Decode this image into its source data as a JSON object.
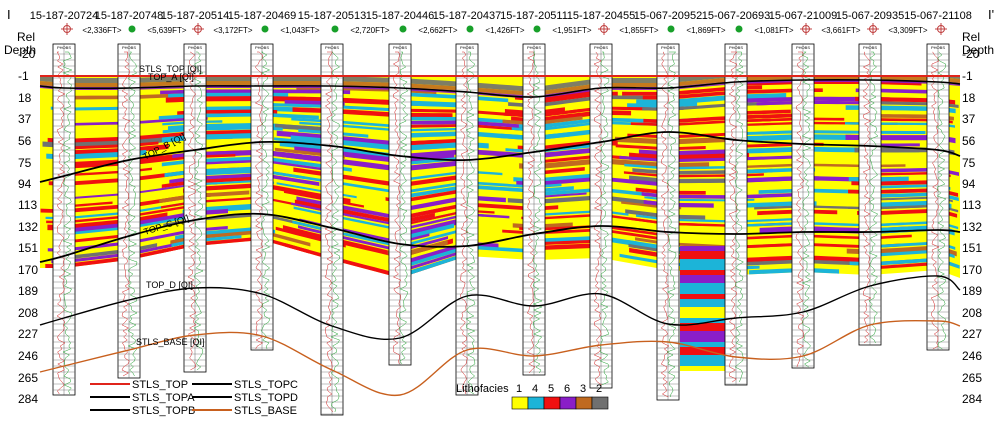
{
  "section_end_left": "I",
  "section_end_right": "I'",
  "axis_title": "Rel Depth",
  "depth_ticks": [
    "-20",
    "-1",
    "18",
    "37",
    "56",
    "75",
    "94",
    "113",
    "132",
    "151",
    "170",
    "189",
    "208",
    "227",
    "246",
    "265",
    "284"
  ],
  "wells": [
    {
      "id": "15-187-20724",
      "spacing": "<2,336FT>",
      "symbol": "dry"
    },
    {
      "id": "15-187-20748",
      "spacing": "<5,639FT>",
      "symbol": "oil"
    },
    {
      "id": "15-187-20514",
      "spacing": "<3,172FT>",
      "symbol": "dry"
    },
    {
      "id": "15-187-20469",
      "spacing": "<1,043FT>",
      "symbol": "oil"
    },
    {
      "id": "15-187-20513",
      "spacing": "<2,720FT>",
      "symbol": "oil"
    },
    {
      "id": "15-187-20446",
      "spacing": "<2,662FT>",
      "symbol": "oil"
    },
    {
      "id": "15-187-20437",
      "spacing": "<1,426FT>",
      "symbol": "oil"
    },
    {
      "id": "15-187-20511",
      "spacing": "<1,951FT>",
      "symbol": "oil"
    },
    {
      "id": "15-187-20455",
      "spacing": "<1,855FT>",
      "symbol": "dry"
    },
    {
      "id": "15-067-20952",
      "spacing": "<1,869FT>",
      "symbol": "oil"
    },
    {
      "id": "15-067-20693",
      "spacing": "<1,081FT>",
      "symbol": "oil"
    },
    {
      "id": "15-067-21009",
      "spacing": "<3,661FT>",
      "symbol": "dry"
    },
    {
      "id": "15-067-20935",
      "spacing": "<3,309FT>",
      "symbol": "dry"
    },
    {
      "id": "15-067-21108",
      "spacing": "",
      "symbol": "dry"
    }
  ],
  "track_header": "PHOBS",
  "horizon_labels": {
    "stls_top": "STLS_TOP [QI]",
    "top_a": "TOP_A [QI]",
    "top_b": "TOP_B [QI]",
    "top_c": "TOP_C [QI]",
    "top_d": "TOP_D [QI]",
    "stls_base": "STLS_BASE [QI]"
  },
  "legend_lines": [
    {
      "label": "STLS_TOP",
      "color": "#e0241b"
    },
    {
      "label": "STLS_TOPC",
      "color": "#000000"
    },
    {
      "label": "STLS_TOPA",
      "color": "#000000"
    },
    {
      "label": "STLS_TOPD",
      "color": "#000000"
    },
    {
      "label": "STLS_TOPB",
      "color": "#000000"
    },
    {
      "label": "STLS_BASE",
      "color": "#c8601e"
    }
  ],
  "lithofacies": {
    "title": "Lithofacies",
    "classes": [
      {
        "code": "1",
        "color": "#ffff00"
      },
      {
        "code": "4",
        "color": "#1cb4d8"
      },
      {
        "code": "5",
        "color": "#f01010"
      },
      {
        "code": "6",
        "color": "#8a1ec8"
      },
      {
        "code": "3",
        "color": "#c06a20"
      },
      {
        "code": "2",
        "color": "#707070"
      }
    ]
  }
}
